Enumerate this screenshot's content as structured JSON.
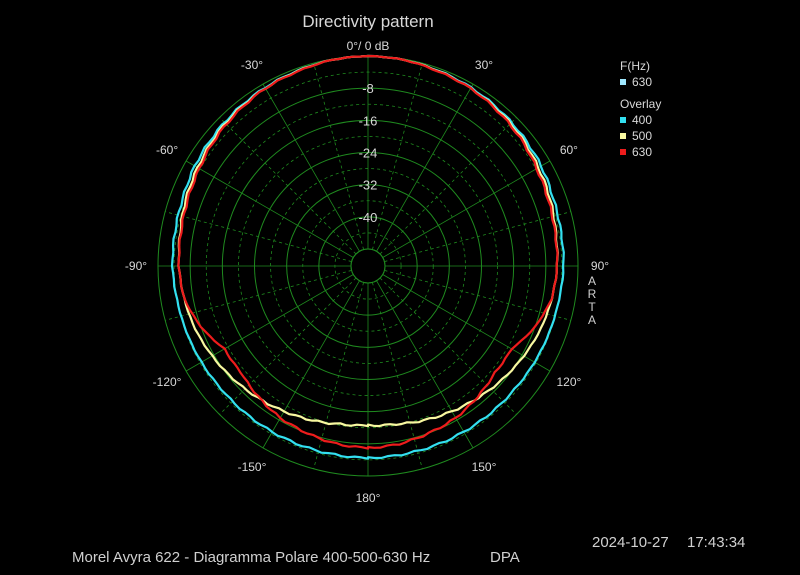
{
  "chart_data": {
    "type": "polar",
    "title": "Directivity pattern",
    "radial_unit_label": "0°/ 0 dB",
    "radial_range_db": [
      -48,
      0
    ],
    "radial_tick_labels": [
      "-8",
      "-16",
      "-24",
      "-32",
      "-40"
    ],
    "radial_ticks": [
      -8,
      -16,
      -24,
      -32,
      -40
    ],
    "angle_labels": [
      {
        "angle": -30,
        "text": "-30°"
      },
      {
        "angle": 30,
        "text": "30°"
      },
      {
        "angle": -60,
        "text": "-60°"
      },
      {
        "angle": 60,
        "text": "60°"
      },
      {
        "angle": -90,
        "text": "-90°"
      },
      {
        "angle": 90,
        "text": "90°"
      },
      {
        "angle": -120,
        "text": "-120°"
      },
      {
        "angle": 120,
        "text": "120°"
      },
      {
        "angle": -150,
        "text": "-150°"
      },
      {
        "angle": 150,
        "text": "150°"
      },
      {
        "angle": 180,
        "text": "180°"
      }
    ],
    "grid": true,
    "legend": {
      "freq_header": "F(Hz)",
      "freq_value": "630",
      "overlay_header": "Overlay",
      "overlay_items": [
        "400",
        "500",
        "630"
      ]
    },
    "angles_deg": [
      0,
      10,
      20,
      30,
      40,
      50,
      60,
      70,
      80,
      90,
      100,
      110,
      120,
      130,
      140,
      150,
      160,
      170,
      180
    ],
    "series": [
      {
        "name": "400",
        "color": "#33e0f0",
        "values": [
          0,
          -0.2,
          -0.6,
          -1.0,
          -1.5,
          -2.0,
          -2.5,
          -3.2,
          -3.5,
          -3.6,
          -4.0,
          -4.2,
          -4.4,
          -4.6,
          -4.6,
          -4.6,
          -4.6,
          -4.6,
          -4.5
        ]
      },
      {
        "name": "500",
        "color": "#f8f8a0",
        "values": [
          0,
          -0.2,
          -0.7,
          -1.2,
          -1.8,
          -2.5,
          -3.3,
          -4.0,
          -4.8,
          -5.2,
          -5.8,
          -6.5,
          -7.5,
          -8.5,
          -9.5,
          -10.5,
          -11.4,
          -12.3,
          -12.6
        ]
      },
      {
        "name": "630",
        "color": "#ee1c1c",
        "values": [
          0,
          -0.2,
          -0.8,
          -1.2,
          -2.0,
          -2.8,
          -3.8,
          -4.5,
          -5.0,
          -5.2,
          -5.8,
          -8.0,
          -11.0,
          -11.0,
          -9.8,
          -8.6,
          -8.0,
          -7.3,
          -7.0
        ]
      }
    ]
  },
  "footer": {
    "description": "Morel Avyra 622 - Diagramma Polare 400-500-630 Hz",
    "mode": "DPA",
    "date": "2024-10-27",
    "time": "17:43:34"
  },
  "watermark": "ARTA",
  "colors": {
    "background": "#000000",
    "grid": "#1f8a1f",
    "text": "#d8d8d8",
    "legend_630_freq": "#9fe8ff",
    "series_400": "#33e0f0",
    "series_500": "#f8f8a0",
    "series_630": "#ee1c1c"
  }
}
